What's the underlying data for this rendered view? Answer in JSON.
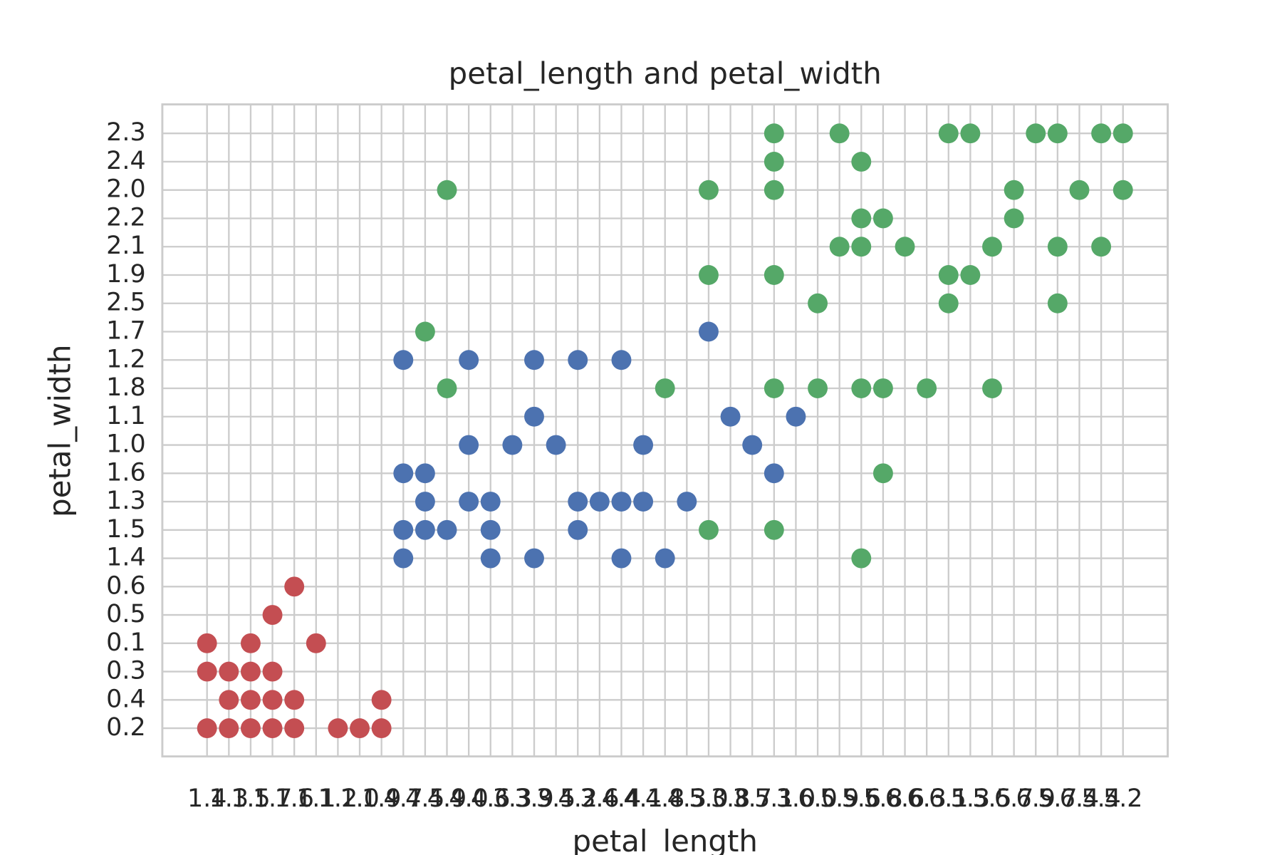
{
  "chart_data": {
    "type": "scatter",
    "title": "petal_length  and  petal_width",
    "xlabel": "petal_length",
    "ylabel": "petal_width",
    "categories": [
      "1.4",
      "1.3",
      "1.5",
      "1.7",
      "1.6",
      "1.1",
      "1.2",
      "1.0",
      "1.9",
      "4.7",
      "4.5",
      "4.9",
      "4.0",
      "4.6",
      "3.3",
      "3.9",
      "3.5",
      "4.2",
      "3.6",
      "4.4",
      "4.1",
      "4.8",
      "4.3",
      "5.0",
      "3.8",
      "3.7",
      "5.1",
      "3.0",
      "6.0",
      "5.9",
      "5.6",
      "5.8",
      "6.6",
      "6.3",
      "6.1",
      "5.3",
      "5.5",
      "6.7",
      "6.9",
      "5.7",
      "6.4",
      "5.4",
      "5.2"
    ],
    "ycategories": [
      "0.2",
      "0.4",
      "0.3",
      "0.1",
      "0.5",
      "0.6",
      "1.4",
      "1.5",
      "1.3",
      "1.6",
      "1.0",
      "1.1",
      "1.8",
      "1.2",
      "1.7",
      "2.5",
      "1.9",
      "2.1",
      "2.2",
      "2.0",
      "2.4",
      "2.3"
    ],
    "grid": true,
    "series": [
      {
        "color": "#c44e52",
        "x": [
          1.4,
          1.4,
          1.4,
          1.3,
          1.3,
          1.3,
          1.5,
          1.5,
          1.5,
          1.5,
          1.7,
          1.7,
          1.7,
          1.7,
          1.6,
          1.6,
          1.6,
          1.1,
          1.2,
          1.0,
          1.9,
          1.9
        ],
        "y": [
          0.1,
          0.3,
          0.2,
          0.3,
          0.4,
          0.2,
          0.1,
          0.3,
          0.4,
          0.2,
          0.5,
          0.3,
          0.4,
          0.2,
          0.6,
          0.4,
          0.2,
          0.1,
          0.2,
          0.2,
          0.4,
          0.2
        ]
      },
      {
        "color": "#4c72b0",
        "x": [
          4.7,
          4.7,
          4.7,
          4.7,
          4.5,
          4.5,
          4.5,
          4.9,
          4.0,
          4.0,
          4.0,
          4.6,
          4.6,
          4.6,
          3.3,
          3.9,
          3.9,
          3.9,
          3.5,
          4.2,
          4.2,
          4.2,
          3.6,
          4.4,
          4.4,
          4.4,
          4.1,
          4.1,
          4.8,
          4.3,
          5.0,
          3.8,
          3.7,
          5.1,
          3.0
        ],
        "y": [
          1.2,
          1.6,
          1.5,
          1.4,
          1.6,
          1.3,
          1.5,
          1.5,
          1.2,
          1.0,
          1.3,
          1.3,
          1.5,
          1.4,
          1.0,
          1.2,
          1.1,
          1.4,
          1.0,
          1.2,
          1.3,
          1.5,
          1.3,
          1.2,
          1.3,
          1.4,
          1.0,
          1.3,
          1.4,
          1.3,
          1.7,
          1.1,
          1.0,
          1.6,
          1.1
        ]
      },
      {
        "color": "#55a868",
        "x": [
          4.5,
          4.9,
          4.9,
          4.8,
          5.0,
          5.0,
          5.0,
          5.1,
          5.1,
          5.1,
          5.1,
          5.1,
          5.1,
          6.0,
          6.0,
          5.9,
          5.9,
          5.6,
          5.6,
          5.6,
          5.6,
          5.6,
          5.8,
          5.8,
          5.8,
          6.6,
          6.3,
          6.1,
          6.1,
          6.1,
          5.3,
          5.3,
          5.5,
          5.5,
          6.7,
          6.7,
          6.9,
          5.7,
          5.7,
          5.7,
          6.4,
          5.4,
          5.4,
          5.2,
          5.2
        ],
        "y": [
          1.7,
          2.0,
          1.8,
          1.8,
          2.0,
          1.9,
          1.5,
          2.3,
          2.4,
          2.0,
          1.9,
          1.8,
          1.5,
          2.5,
          1.8,
          2.3,
          2.1,
          2.4,
          2.2,
          2.1,
          1.8,
          1.4,
          2.2,
          1.8,
          1.6,
          2.1,
          1.8,
          2.3,
          1.9,
          2.5,
          2.3,
          1.9,
          2.1,
          1.8,
          2.0,
          2.2,
          2.3,
          2.3,
          2.1,
          2.5,
          2.0,
          2.3,
          2.1,
          2.3,
          2.0
        ]
      }
    ]
  }
}
